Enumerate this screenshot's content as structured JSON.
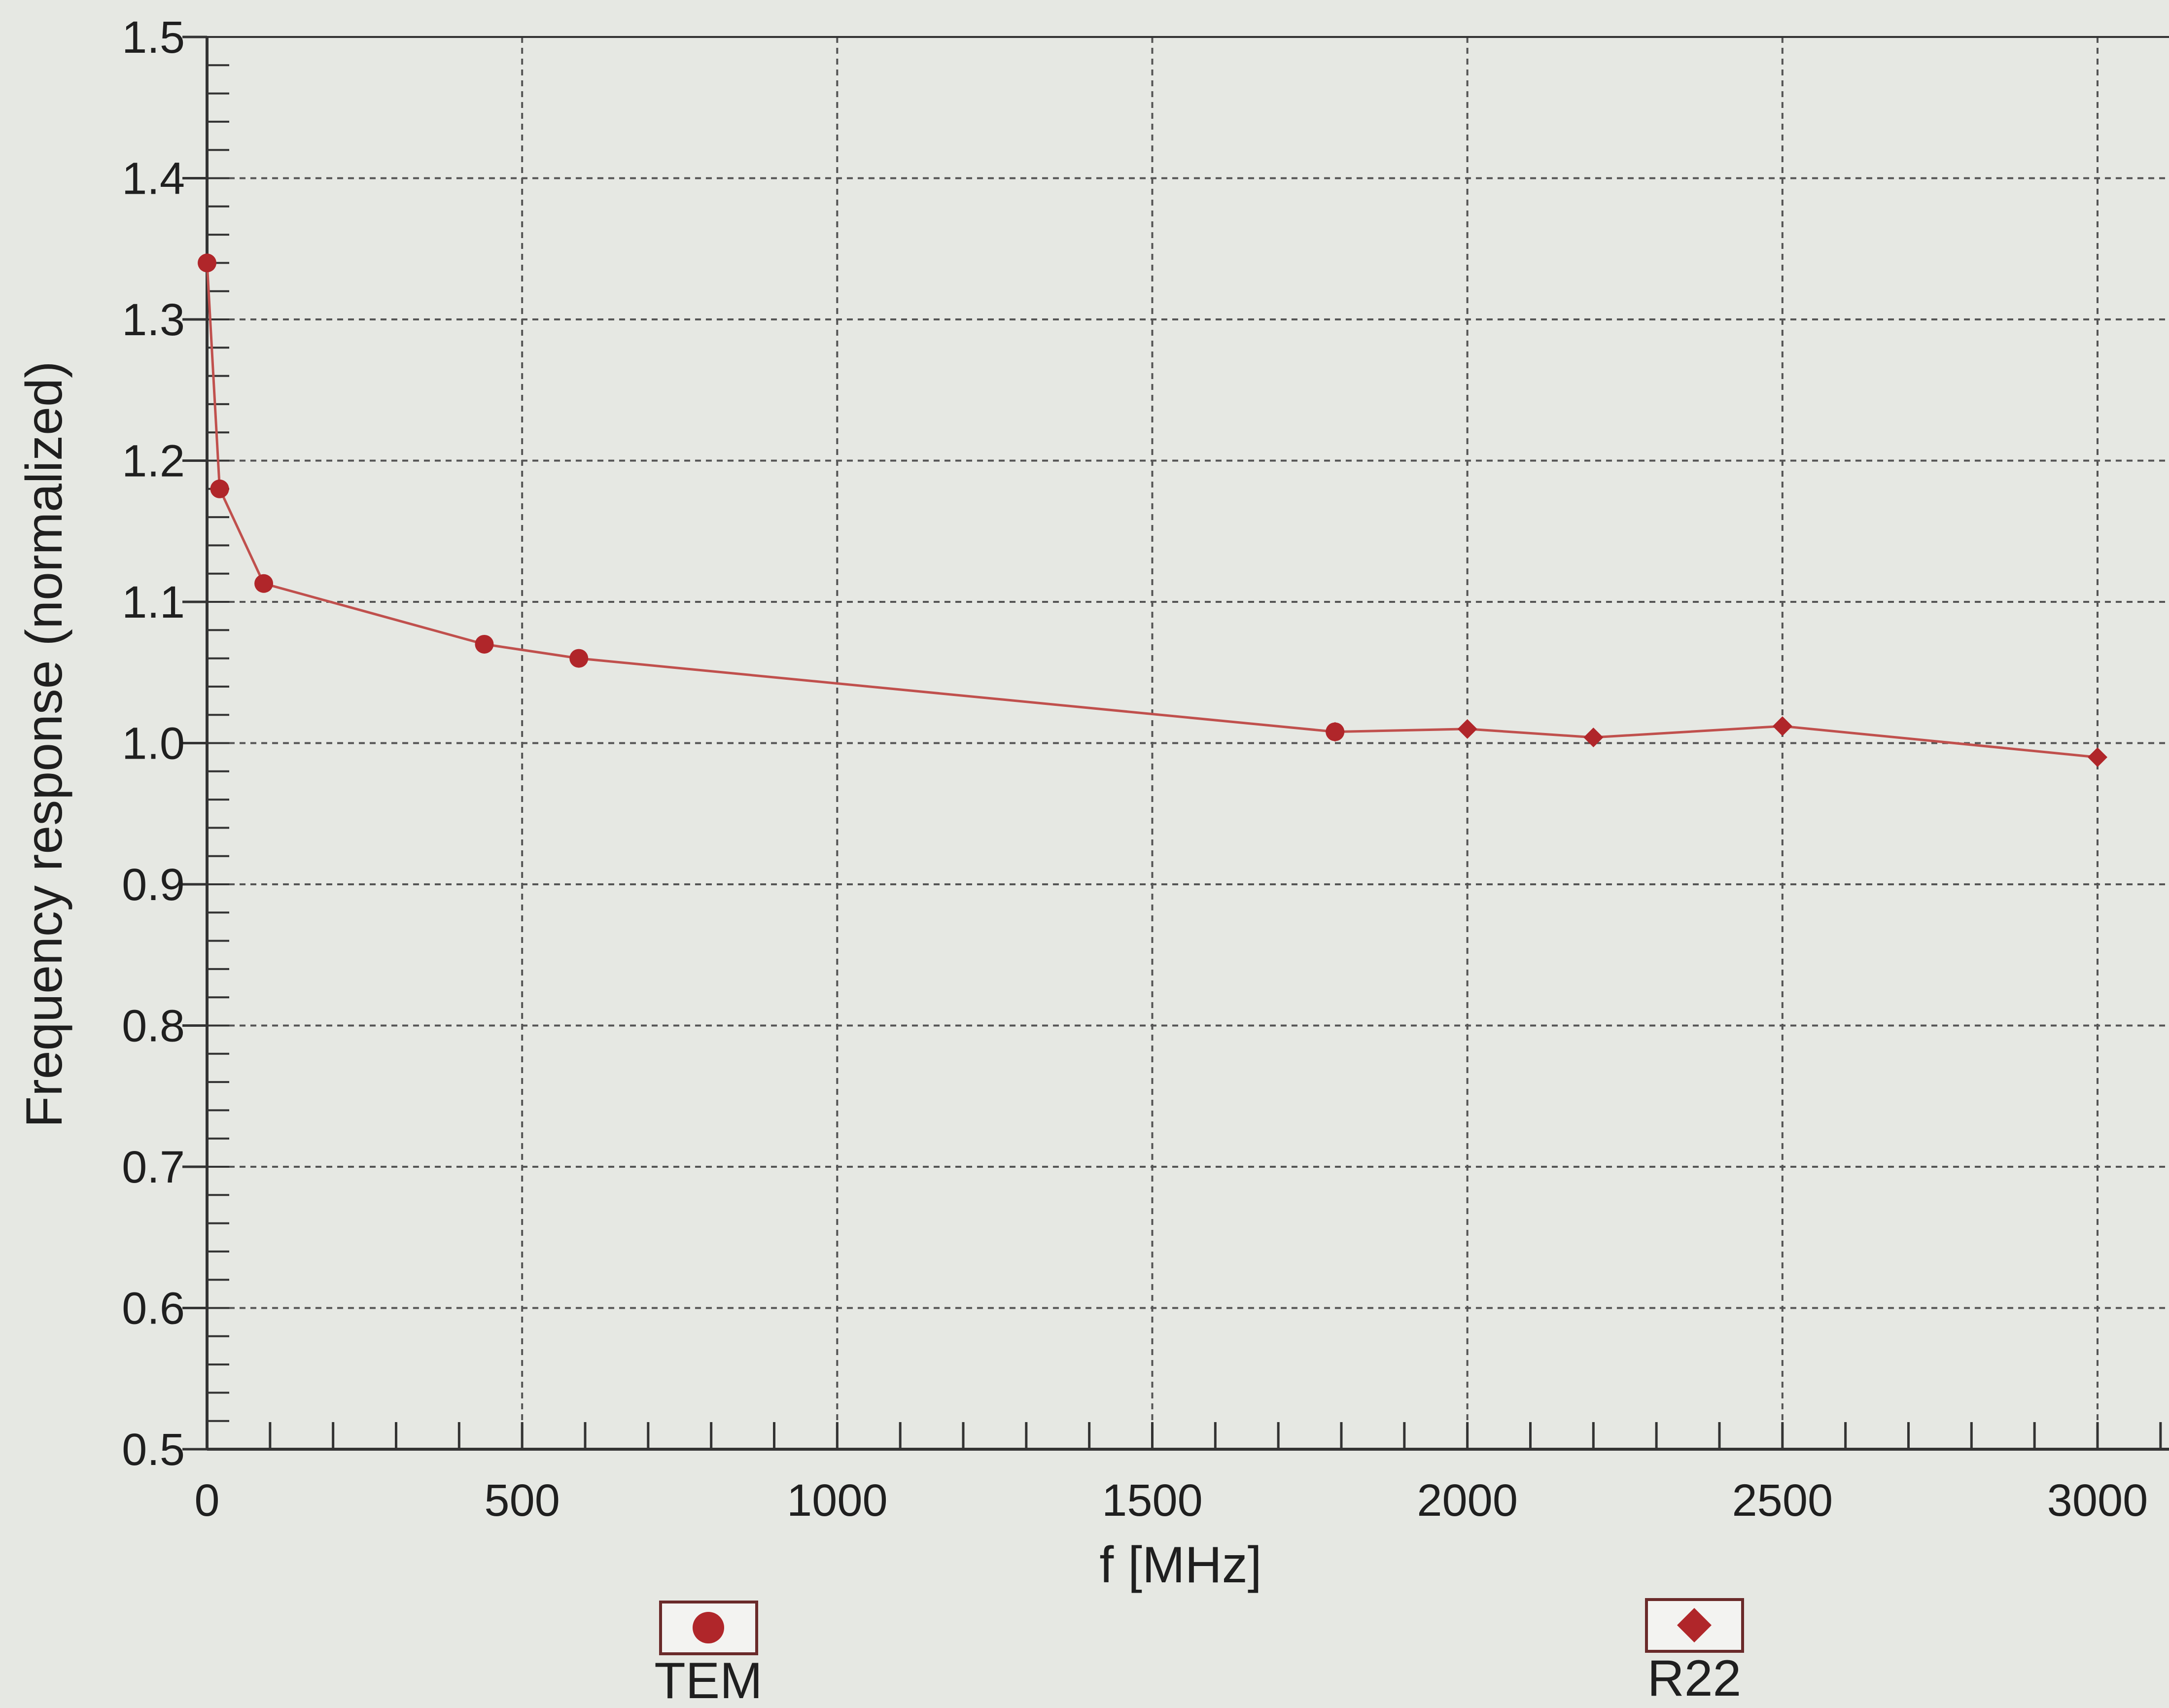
{
  "chart_data": {
    "type": "line",
    "xlabel": "f [MHz]",
    "ylabel": "Frequency response (normalized)",
    "xlim": [
      0,
      3100
    ],
    "ylim": [
      0.5,
      1.5
    ],
    "xticks": [
      "0",
      "500",
      "1000",
      "1500",
      "2000",
      "2500",
      "3000"
    ],
    "yticks": [
      "0.5",
      "0.6",
      "0.7",
      "0.8",
      "0.9",
      "1.0",
      "1.1",
      "1.2",
      "1.3",
      "1.4",
      "1.5"
    ],
    "grid": true,
    "legend_position": "bottom",
    "colors": {
      "series": "#b0262a",
      "line": "#c0504d",
      "grid": "#555555",
      "axis": "#333333",
      "background": "#e6e8e3"
    },
    "series": [
      {
        "name": "TEM",
        "marker": "circle",
        "x": [
          0,
          20,
          90,
          440,
          590,
          1790
        ],
        "y": [
          1.34,
          1.18,
          1.113,
          1.07,
          1.06,
          1.008
        ]
      },
      {
        "name": "R22",
        "marker": "diamond",
        "x": [
          1790,
          2000,
          2200,
          2500,
          3000
        ],
        "y": [
          1.008,
          1.01,
          1.004,
          1.012,
          0.99
        ]
      }
    ]
  }
}
